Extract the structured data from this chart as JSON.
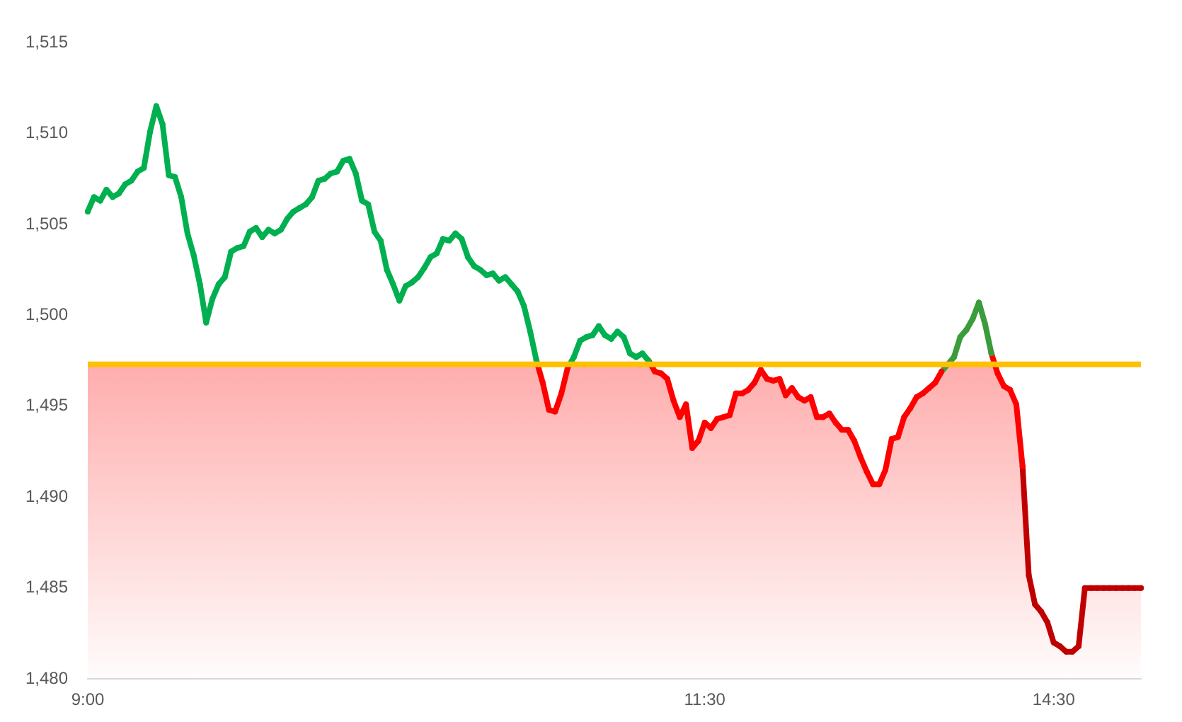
{
  "chart_data": {
    "type": "line",
    "grid": false,
    "categories": [
      "9:00",
      null,
      null,
      null,
      null,
      null,
      null,
      null,
      null,
      null,
      null,
      null,
      null,
      null,
      null,
      null,
      null,
      null,
      null,
      null,
      null,
      null,
      null,
      null,
      null,
      null,
      null,
      null,
      null,
      null,
      null,
      null,
      null,
      null,
      null,
      null,
      null,
      null,
      null,
      null,
      null,
      null,
      null,
      null,
      null,
      null,
      null,
      null,
      null,
      null,
      null,
      null,
      null,
      null,
      null,
      null,
      null,
      null,
      null,
      null,
      null,
      null,
      null,
      null,
      null,
      null,
      null,
      null,
      null,
      null,
      null,
      null,
      null,
      null,
      null,
      null,
      null,
      null,
      null,
      null,
      null,
      null,
      null,
      null,
      null,
      null,
      null,
      null,
      null,
      null,
      null,
      null,
      null,
      null,
      null,
      null,
      null,
      null,
      null,
      "11:30",
      null,
      null,
      null,
      null,
      null,
      null,
      null,
      null,
      null,
      null,
      null,
      null,
      null,
      null,
      null,
      null,
      null,
      null,
      null,
      null,
      null,
      null,
      null,
      null,
      null,
      null,
      null,
      null,
      null,
      null,
      null,
      null,
      null,
      null,
      null,
      null,
      null,
      null,
      null,
      null,
      null,
      null,
      null,
      null,
      null,
      null,
      null,
      null,
      null,
      null,
      null,
      null,
      null,
      null,
      null,
      "14:30",
      null,
      null,
      null,
      null,
      null,
      null,
      null,
      null,
      null,
      null,
      null,
      null,
      null,
      null
    ],
    "ylim": [
      1480,
      1515
    ],
    "yticks": [
      {
        "value": 1480,
        "label": "1,480"
      },
      {
        "value": 1485,
        "label": "1,485"
      },
      {
        "value": 1490,
        "label": "1,490"
      },
      {
        "value": 1495,
        "label": "1,495"
      },
      {
        "value": 1500,
        "label": "1,500"
      },
      {
        "value": 1505,
        "label": "1,505"
      },
      {
        "value": 1510,
        "label": "1,510"
      },
      {
        "value": 1515,
        "label": "1,515"
      }
    ],
    "ref_lines": [
      {
        "axis": "y",
        "value": 1497.3,
        "color": "#ffc000"
      }
    ],
    "series": [
      {
        "type": "area",
        "color": "#ff0000",
        "values": [
          1505.7,
          1506.5,
          1506.3,
          1506.9,
          1506.5,
          1506.7,
          1507.2,
          1507.4,
          1507.9,
          1508.1,
          1510.1,
          1511.5,
          1510.5,
          1507.7,
          1507.6,
          1506.5,
          1504.5,
          1503.3,
          1501.7,
          1499.6,
          1500.9,
          1501.7,
          1502.1,
          1503.5,
          1503.7,
          1503.8,
          1504.6,
          1504.8,
          1504.3,
          1504.7,
          1504.5,
          1504.7,
          1505.3,
          1505.7,
          1505.9,
          1506.1,
          1506.5,
          1507.4,
          1507.5,
          1507.8,
          1507.9,
          1508.5,
          1508.6,
          1507.8,
          1506.3,
          1506.1,
          1504.6,
          1504.1,
          1502.5,
          1501.7,
          1500.8,
          1501.6,
          1501.8,
          1502.1,
          1502.6,
          1503.2,
          1503.4,
          1504.2,
          1504.1,
          1504.5,
          1504.2,
          1503.2,
          1502.7,
          1502.5,
          1502.2,
          1502.3,
          1501.9,
          1502.1,
          1501.7,
          1501.3,
          1500.5,
          1499.1,
          1497.5,
          1496.3,
          1494.8,
          1494.7,
          1495.7,
          1497.1,
          1497.7,
          1498.6,
          1498.8,
          1498.9,
          1499.4,
          1498.9,
          1498.7,
          1499.1,
          1498.8,
          1497.9,
          1497.7,
          1497.9,
          1497.5,
          1496.9,
          1496.8,
          1496.5,
          1495.3,
          1494.4,
          1495.1,
          1492.7,
          1493.1,
          1494.1,
          1493.8,
          1494.3,
          1494.4,
          1494.5,
          1495.7,
          1495.7,
          1495.9,
          1496.3,
          1497.0,
          1496.5,
          1496.4,
          1496.5,
          1495.6,
          1496.0,
          1495.5,
          1495.3,
          1495.5,
          1494.4,
          1494.4,
          1494.6,
          1494.1,
          1493.7,
          1493.7,
          1493.1,
          1492.2,
          1491.4,
          1490.7,
          1490.7,
          1491.5,
          1493.2,
          1493.3,
          1494.4,
          1494.9,
          1495.5,
          1495.7,
          1496.0,
          1496.3,
          1496.9,
          1497.3,
          1497.7,
          1498.8,
          1499.2,
          1499.8,
          1500.7,
          1499.5,
          1497.9,
          1496.8,
          1496.1,
          1495.9,
          1495.1,
          1491.7,
          1485.7,
          1484.1,
          1483.7,
          1483.1,
          1482.0,
          1481.8,
          1481.5,
          1481.5,
          1481.8,
          1485.0,
          1485.0,
          1485.0,
          1485.0,
          1485.0,
          1485.0,
          1485.0,
          1485.0,
          1485.0,
          1485.0
        ],
        "colors": [
          "#00b050",
          "#00b050",
          "#00b050",
          "#00b050",
          "#00b050",
          "#00b050",
          "#00b050",
          "#00b050",
          "#00b050",
          "#00b050",
          "#00b050",
          "#00b050",
          "#00b050",
          "#00b050",
          "#00b050",
          "#00b050",
          "#00b050",
          "#00b050",
          "#00b050",
          "#00b050",
          "#00b050",
          "#00b050",
          "#00b050",
          "#00b050",
          "#00b050",
          "#00b050",
          "#00b050",
          "#00b050",
          "#00b050",
          "#00b050",
          "#00b050",
          "#00b050",
          "#00b050",
          "#00b050",
          "#00b050",
          "#00b050",
          "#00b050",
          "#00b050",
          "#00b050",
          "#00b050",
          "#00b050",
          "#00b050",
          "#00b050",
          "#00b050",
          "#00b050",
          "#00b050",
          "#00b050",
          "#00b050",
          "#00b050",
          "#00b050",
          "#00b050",
          "#00b050",
          "#00b050",
          "#00b050",
          "#00b050",
          "#00b050",
          "#00b050",
          "#00b050",
          "#00b050",
          "#00b050",
          "#00b050",
          "#00b050",
          "#00b050",
          "#00b050",
          "#00b050",
          "#00b050",
          "#00b050",
          "#00b050",
          "#00b050",
          "#00b050",
          "#00b050",
          "#00b050",
          "#00b050",
          "#ff0000",
          "#ff0000",
          "#ff0000",
          "#ff0000",
          "#ff0000",
          "#00b050",
          "#00b050",
          "#00b050",
          "#00b050",
          "#00b050",
          "#00b050",
          "#00b050",
          "#00b050",
          "#00b050",
          "#00b050",
          "#00b050",
          "#00b050",
          "#00b050",
          "#ff0000",
          "#ff0000",
          "#ff0000",
          "#ff0000",
          "#ff0000",
          "#ff0000",
          "#ff0000",
          "#ff0000",
          "#ff0000",
          "#ff0000",
          "#ff0000",
          "#ff0000",
          "#ff0000",
          "#ff0000",
          "#ff0000",
          "#ff0000",
          "#ff0000",
          "#ff0000",
          "#ff0000",
          "#ff0000",
          "#ff0000",
          "#ff0000",
          "#ff0000",
          "#ff0000",
          "#ff0000",
          "#ff0000",
          "#ff0000",
          "#ff0000",
          "#ff0000",
          "#ff0000",
          "#ff0000",
          "#ff0000",
          "#ff0000",
          "#ff0000",
          "#ff0000",
          "#ff0000",
          "#ff0000",
          "#ff0000",
          "#ff0000",
          "#ff0000",
          "#ff0000",
          "#ff0000",
          "#ff0000",
          "#ff0000",
          "#ff0000",
          "#ff0000",
          "#ff0000",
          "#3a9c3a",
          "#3a9c3a",
          "#3a9c3a",
          "#3a9c3a",
          "#3a9c3a",
          "#3a9c3a",
          "#3a9c3a",
          "#3a9c3a",
          "#ff0000",
          "#ff0000",
          "#ff0000",
          "#ff0000",
          "#ff0000",
          "#c00000",
          "#c00000",
          "#c00000",
          "#c00000",
          "#c00000",
          "#c00000",
          "#c00000",
          "#c00000",
          "#c00000",
          "#c00000",
          "#c00000",
          "#c00000",
          "#c00000",
          "#c00000",
          "#c00000",
          "#c00000",
          "#c00000",
          "#c00000",
          "#c00000"
        ]
      }
    ]
  }
}
